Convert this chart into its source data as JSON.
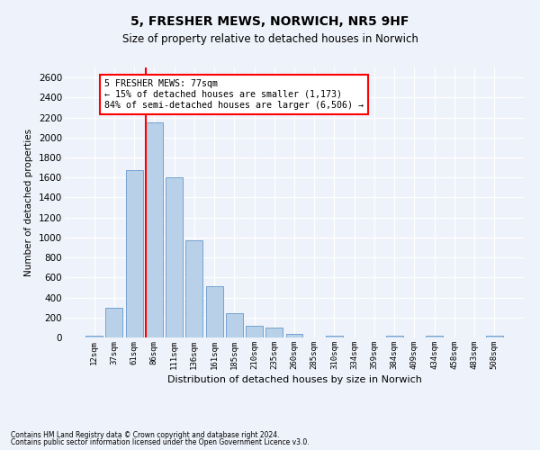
{
  "title1": "5, FRESHER MEWS, NORWICH, NR5 9HF",
  "title2": "Size of property relative to detached houses in Norwich",
  "xlabel": "Distribution of detached houses by size in Norwich",
  "ylabel": "Number of detached properties",
  "categories": [
    "12sqm",
    "37sqm",
    "61sqm",
    "86sqm",
    "111sqm",
    "136sqm",
    "161sqm",
    "185sqm",
    "210sqm",
    "235sqm",
    "260sqm",
    "285sqm",
    "310sqm",
    "334sqm",
    "359sqm",
    "384sqm",
    "409sqm",
    "434sqm",
    "458sqm",
    "483sqm",
    "508sqm"
  ],
  "values": [
    20,
    300,
    1670,
    2150,
    1600,
    975,
    510,
    245,
    120,
    100,
    40,
    0,
    20,
    0,
    0,
    20,
    0,
    20,
    0,
    0,
    20
  ],
  "bar_color": "#b8d0e8",
  "bar_edge_color": "#6699cc",
  "vline_color": "red",
  "vline_x_index": 3,
  "annotation_text": "5 FRESHER MEWS: 77sqm\n← 15% of detached houses are smaller (1,173)\n84% of semi-detached houses are larger (6,506) →",
  "annotation_box_color": "white",
  "annotation_box_edge": "red",
  "bg_color": "#eef2fa",
  "grid_color": "white",
  "footnote1": "Contains HM Land Registry data © Crown copyright and database right 2024.",
  "footnote2": "Contains public sector information licensed under the Open Government Licence v3.0.",
  "ylim": [
    0,
    2700
  ],
  "yticks": [
    0,
    200,
    400,
    600,
    800,
    1000,
    1200,
    1400,
    1600,
    1800,
    2000,
    2200,
    2400,
    2600
  ]
}
